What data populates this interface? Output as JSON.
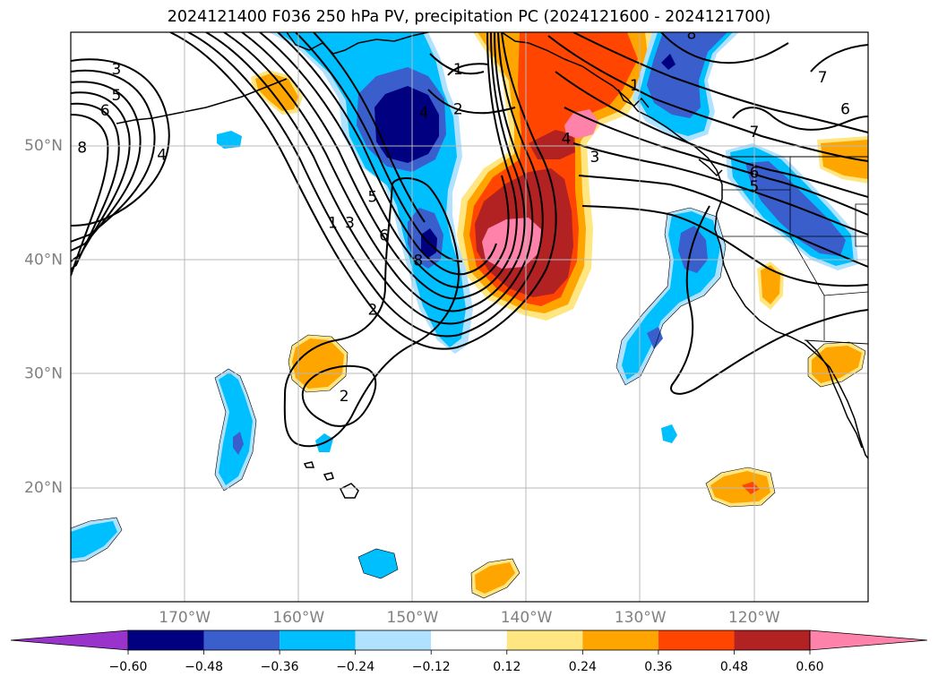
{
  "title": "2024121400 F036 250 hPa PV, precipitation PC (2024121600 - 2024121700)",
  "map": {
    "lon_range": [
      -180,
      -110
    ],
    "lat_range": [
      10,
      60
    ],
    "lat_labels": [
      {
        "lat": 50,
        "text": "50°N"
      },
      {
        "lat": 40,
        "text": "40°N"
      },
      {
        "lat": 30,
        "text": "30°N"
      },
      {
        "lat": 20,
        "text": "20°N"
      }
    ],
    "lon_labels": [
      {
        "lon": -170,
        "text": "170°W"
      },
      {
        "lon": -160,
        "text": "160°W"
      },
      {
        "lon": -150,
        "text": "150°W"
      },
      {
        "lon": -140,
        "text": "140°W"
      },
      {
        "lon": -130,
        "text": "130°W"
      },
      {
        "lon": -120,
        "text": "120°W"
      }
    ],
    "grid": true,
    "contour_labels": [
      {
        "text": "3",
        "lon": -176,
        "lat": 56.7
      },
      {
        "text": "5",
        "lon": -176,
        "lat": 54.4
      },
      {
        "text": "6",
        "lon": -177,
        "lat": 53.1
      },
      {
        "text": "8",
        "lon": -179,
        "lat": 49.8
      },
      {
        "text": "4",
        "lon": -172,
        "lat": 49.2
      },
      {
        "text": "4",
        "lon": -149,
        "lat": 52.9
      },
      {
        "text": "1",
        "lon": -146,
        "lat": 56.7
      },
      {
        "text": "2",
        "lon": -146,
        "lat": 53.2
      },
      {
        "text": "1",
        "lon": -130.5,
        "lat": 55.3
      },
      {
        "text": "4",
        "lon": -136.5,
        "lat": 50.6
      },
      {
        "text": "3",
        "lon": -134,
        "lat": 49.0
      },
      {
        "text": "8",
        "lon": -125.5,
        "lat": 59.8
      },
      {
        "text": "7",
        "lon": -114,
        "lat": 56.0
      },
      {
        "text": "6",
        "lon": -112,
        "lat": 53.2
      },
      {
        "text": "7",
        "lon": -120,
        "lat": 51.2
      },
      {
        "text": "6",
        "lon": -120,
        "lat": 47.6
      },
      {
        "text": "5",
        "lon": -120,
        "lat": 46.4
      },
      {
        "text": "5",
        "lon": -153.5,
        "lat": 45.5
      },
      {
        "text": "1",
        "lon": -157,
        "lat": 43.2
      },
      {
        "text": "3",
        "lon": -155.5,
        "lat": 43.2
      },
      {
        "text": "6",
        "lon": -152.5,
        "lat": 42.1
      },
      {
        "text": "8",
        "lon": -149.5,
        "lat": 39.9
      },
      {
        "text": "2",
        "lon": -153.5,
        "lat": 35.6
      },
      {
        "text": "2",
        "lon": -156,
        "lat": 28.0
      }
    ]
  },
  "colorbar": {
    "levels": [
      -0.6,
      -0.48,
      -0.36,
      -0.24,
      -0.12,
      0.12,
      0.24,
      0.36,
      0.48,
      0.6
    ],
    "tick_labels": [
      "−0.60",
      "−0.48",
      "−0.36",
      "−0.24",
      "−0.12",
      "0.12",
      "0.24",
      "0.36",
      "0.48",
      "0.60"
    ],
    "colors": [
      "#9933cc",
      "#000080",
      "#3a5fcd",
      "#00bfff",
      "#b0e2ff",
      "#ffffff",
      "#ffe680",
      "#ffa500",
      "#ff4500",
      "#b22222",
      "#ff82ab"
    ]
  }
}
